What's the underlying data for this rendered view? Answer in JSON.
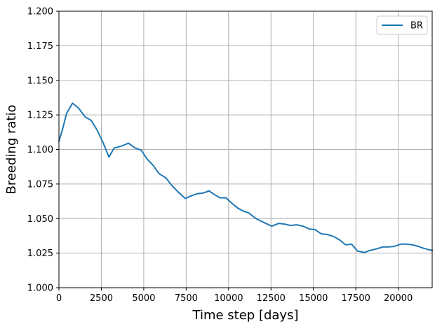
{
  "chart_data": {
    "type": "line",
    "title": "",
    "xlabel": "Time step [days]",
    "ylabel": "Breeding ratio",
    "xlim": [
      0,
      22000
    ],
    "ylim": [
      1.0,
      1.2
    ],
    "xticks": [
      0,
      2500,
      5000,
      7500,
      10000,
      12500,
      15000,
      17500,
      20000
    ],
    "xtick_labels": [
      "0",
      "2500",
      "5000",
      "7500",
      "10000",
      "12500",
      "15000",
      "17500",
      "20000"
    ],
    "yticks": [
      1.0,
      1.025,
      1.05,
      1.075,
      1.1,
      1.125,
      1.15,
      1.175,
      1.2
    ],
    "ytick_labels": [
      "1.000",
      "1.025",
      "1.050",
      "1.075",
      "1.100",
      "1.125",
      "1.150",
      "1.175",
      "1.200"
    ],
    "grid": true,
    "legend_position": "top-right",
    "series": [
      {
        "name": "BR",
        "color": "#1f77b4",
        "x": [
          0,
          200,
          450,
          800,
          1150,
          1550,
          1900,
          2250,
          2600,
          2950,
          3250,
          3700,
          4100,
          4500,
          4850,
          5200,
          5550,
          5900,
          6300,
          6650,
          7000,
          7450,
          7800,
          8150,
          8500,
          8850,
          9150,
          9500,
          9850,
          10200,
          10550,
          10850,
          11200,
          11550,
          11850,
          12200,
          12550,
          12950,
          13300,
          13650,
          14000,
          14400,
          14750,
          15100,
          15450,
          15800,
          16200,
          16550,
          16900,
          17250,
          17600,
          18000,
          18350,
          18700,
          19100,
          19400,
          19750,
          20150,
          20500,
          20850,
          21200,
          21500,
          21800,
          22000
        ],
        "values": [
          1.106,
          1.114,
          1.126,
          1.1335,
          1.13,
          1.1235,
          1.121,
          1.114,
          1.105,
          1.0945,
          1.101,
          1.1025,
          1.1045,
          1.101,
          1.0995,
          1.093,
          1.0885,
          1.0825,
          1.0795,
          1.074,
          1.0695,
          1.0645,
          1.0665,
          1.068,
          1.0685,
          1.07,
          1.0675,
          1.065,
          1.065,
          1.061,
          1.0575,
          1.0555,
          1.054,
          1.0505,
          1.0485,
          1.0465,
          1.0445,
          1.0465,
          1.046,
          1.045,
          1.0455,
          1.0445,
          1.0425,
          1.042,
          1.039,
          1.0385,
          1.037,
          1.0345,
          1.031,
          1.0315,
          1.0265,
          1.0255,
          1.027,
          1.028,
          1.0295,
          1.0295,
          1.0298,
          1.0315,
          1.0315,
          1.031,
          1.0298,
          1.0285,
          1.0275,
          1.027
        ]
      }
    ]
  }
}
